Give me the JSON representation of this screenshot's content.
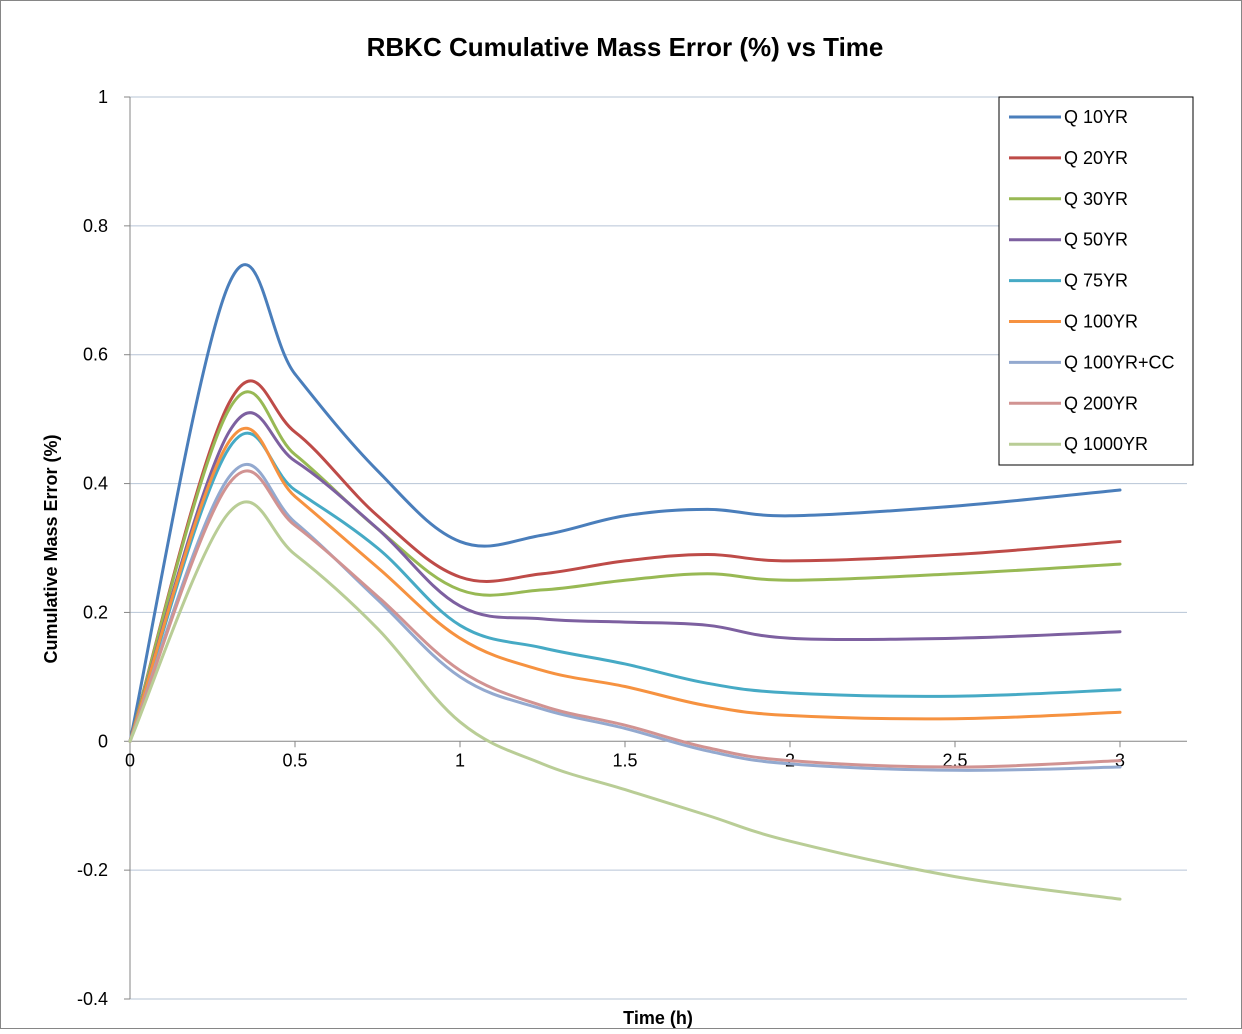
{
  "chart_data": {
    "type": "line",
    "title": "RBKC Cumulative Mass Error (%) vs Time",
    "xlabel": "Time (h)",
    "ylabel": "Cumulative Mass Error (%)",
    "xlim": [
      0,
      3
    ],
    "ylim": [
      -0.4,
      1
    ],
    "xticks": [
      "0",
      "0.5",
      "1",
      "1.5",
      "2",
      "2.5",
      "3"
    ],
    "yticks": [
      "-0.4",
      "-0.2",
      "0",
      "0.2",
      "0.4",
      "0.6",
      "0.8",
      "1"
    ],
    "grid": "horizontal",
    "legend_position": "top-right",
    "x": [
      0,
      0.3,
      0.5,
      0.75,
      1,
      1.25,
      1.5,
      1.75,
      2,
      2.5,
      3
    ],
    "series": [
      {
        "name": "Q 10YR",
        "color": "#4A7EBB",
        "values": [
          0,
          0.71,
          0.57,
          0.42,
          0.31,
          0.32,
          0.35,
          0.36,
          0.35,
          0.365,
          0.39
        ]
      },
      {
        "name": "Q 20YR",
        "color": "#BE4B48",
        "values": [
          0,
          0.525,
          0.48,
          0.35,
          0.255,
          0.26,
          0.28,
          0.29,
          0.28,
          0.29,
          0.31
        ]
      },
      {
        "name": "Q 30YR",
        "color": "#98B954",
        "values": [
          0,
          0.515,
          0.445,
          0.33,
          0.235,
          0.235,
          0.25,
          0.26,
          0.25,
          0.26,
          0.275
        ]
      },
      {
        "name": "Q 50YR",
        "color": "#7D60A0",
        "values": [
          0,
          0.48,
          0.435,
          0.33,
          0.21,
          0.19,
          0.185,
          0.18,
          0.16,
          0.16,
          0.17
        ]
      },
      {
        "name": "Q 75YR",
        "color": "#46AAC5",
        "values": [
          0,
          0.455,
          0.39,
          0.3,
          0.18,
          0.145,
          0.12,
          0.09,
          0.075,
          0.07,
          0.08
        ]
      },
      {
        "name": "Q 100YR",
        "color": "#F69240",
        "values": [
          0,
          0.465,
          0.38,
          0.27,
          0.16,
          0.11,
          0.085,
          0.055,
          0.04,
          0.035,
          0.045
        ]
      },
      {
        "name": "Q 100YR+CC",
        "color": "#93A9CF",
        "values": [
          0,
          0.41,
          0.34,
          0.22,
          0.1,
          0.05,
          0.02,
          -0.015,
          -0.035,
          -0.045,
          -0.04
        ]
      },
      {
        "name": "Q 200YR",
        "color": "#D19392",
        "values": [
          0,
          0.4,
          0.335,
          0.225,
          0.11,
          0.055,
          0.025,
          -0.01,
          -0.03,
          -0.04,
          -0.03
        ]
      },
      {
        "name": "Q 1000YR",
        "color": "#B9CD96",
        "values": [
          0,
          0.355,
          0.29,
          0.175,
          0.03,
          -0.035,
          -0.075,
          -0.115,
          -0.155,
          -0.21,
          -0.245
        ]
      }
    ]
  }
}
